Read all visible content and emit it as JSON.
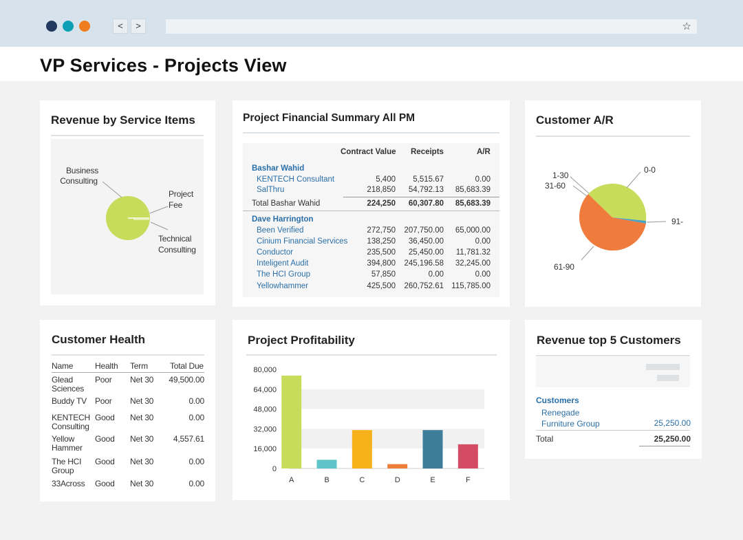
{
  "browser": {
    "dot_colors": [
      "#23385e",
      "#0e9fb5",
      "#ef7d1f"
    ],
    "back_label": "<",
    "forward_label": ">",
    "star_glyph": "☆"
  },
  "page": {
    "title": "VP Services - Projects View"
  },
  "revenue_by_service": {
    "title": "Revenue by  Service Items",
    "labels": {
      "business_consulting": [
        "Business",
        "Consulting"
      ],
      "project_fee": [
        "Project",
        "Fee"
      ],
      "technical_consulting": [
        "Technical",
        "Consulting"
      ]
    },
    "slice_color": "#c8dc5c"
  },
  "financial_summary": {
    "title": "Project Financial Summary All PM",
    "headers": {
      "contract": "Contract Value",
      "receipts": "Receipts",
      "ar": "A/R"
    },
    "groups": [
      {
        "name": "Bashar Wahid",
        "rows": [
          {
            "name": "KENTECH Consultant",
            "contract": "5,400",
            "receipts": "5,515.67",
            "ar": "0.00"
          },
          {
            "name": "SalThru",
            "contract": "218,850",
            "receipts": "54,792.13",
            "ar": "85,683.39"
          }
        ],
        "total": {
          "label": "Total Bashar Wahid",
          "contract": "224,250",
          "receipts": "60,307.80",
          "ar": "85,683.39"
        }
      },
      {
        "name": "Dave Harrington",
        "rows": [
          {
            "name": "Been Verified",
            "contract": "272,750",
            "receipts": "207,750.00",
            "ar": "65,000.00"
          },
          {
            "name": "Cinium Financial Services",
            "contract": "138,250",
            "receipts": "36,450.00",
            "ar": "0.00"
          },
          {
            "name": "Conductor",
            "contract": "235,500",
            "receipts": "25,450.00",
            "ar": "11,781.32"
          },
          {
            "name": "Inteligent Audit",
            "contract": "394,800",
            "receipts": "245,196.58",
            "ar": "32,245.00"
          },
          {
            "name": "The HCI Group",
            "contract": "57,850",
            "receipts": "0.00",
            "ar": "0.00"
          },
          {
            "name": "Yellowhammer",
            "contract": "425,500",
            "receipts": "260,752.61",
            "ar": "115,785.00"
          }
        ]
      }
    ]
  },
  "customer_ar": {
    "title": "Customer A/R",
    "labels": {
      "b1_30": "1-30",
      "b31_60": "31-60",
      "b0_0": "0-0",
      "b91": "91-",
      "b61_90": "61-90"
    },
    "colors": {
      "green": "#c8dc5c",
      "orange": "#ef7b3d",
      "teal": "#4d9fbf"
    }
  },
  "customer_health": {
    "title": "Customer Health",
    "headers": {
      "name": "Name",
      "health": "Health",
      "term": "Term",
      "total": "Total Due"
    },
    "rows": [
      {
        "name": [
          "Glead",
          "Sciences"
        ],
        "health": "Poor",
        "term": "Net 30",
        "total": "49,500.00"
      },
      {
        "name": [
          "Buddy TV"
        ],
        "health": "Poor",
        "term": "Net 30",
        "total": "0.00"
      },
      {
        "name": [
          "KENTECH",
          "Consulting"
        ],
        "health": "Good",
        "term": "Net 30",
        "total": "0.00"
      },
      {
        "name": [
          "Yellow",
          "Hammer"
        ],
        "health": "Good",
        "term": "Net 30",
        "total": "4,557.61"
      },
      {
        "name": [
          "The HCI",
          "Group"
        ],
        "health": "Good",
        "term": "Net 30",
        "total": "0.00"
      },
      {
        "name": [
          "33Across"
        ],
        "health": "Good",
        "term": "Net 30",
        "total": "0.00"
      }
    ]
  },
  "project_profitability": {
    "title": "Project Profitability"
  },
  "chart_data": {
    "type": "bar",
    "categories": [
      "A",
      "B",
      "C",
      "D",
      "E",
      "F"
    ],
    "values": [
      75000,
      7000,
      31000,
      3500,
      31000,
      19500
    ],
    "colors": [
      "#c8dc5c",
      "#5fc4c9",
      "#f7b21b",
      "#ef7d3a",
      "#3d7d9a",
      "#d44c63"
    ],
    "ytick_labels": [
      "80,000",
      "64,000",
      "48,000",
      "32,000",
      "16,000",
      "0"
    ],
    "yticks": [
      80000,
      64000,
      48000,
      32000,
      16000,
      0
    ],
    "ylim": [
      0,
      80000
    ],
    "title": "Project Profitability",
    "grid": true
  },
  "revenue_top5": {
    "title": "Revenue top 5 Customers",
    "customers_label": "Customers",
    "rows": [
      {
        "name": [
          "Renegade",
          "Furniture Group"
        ],
        "value": "25,250.00"
      }
    ],
    "total_label": "Total",
    "total_value": "25,250.00"
  }
}
